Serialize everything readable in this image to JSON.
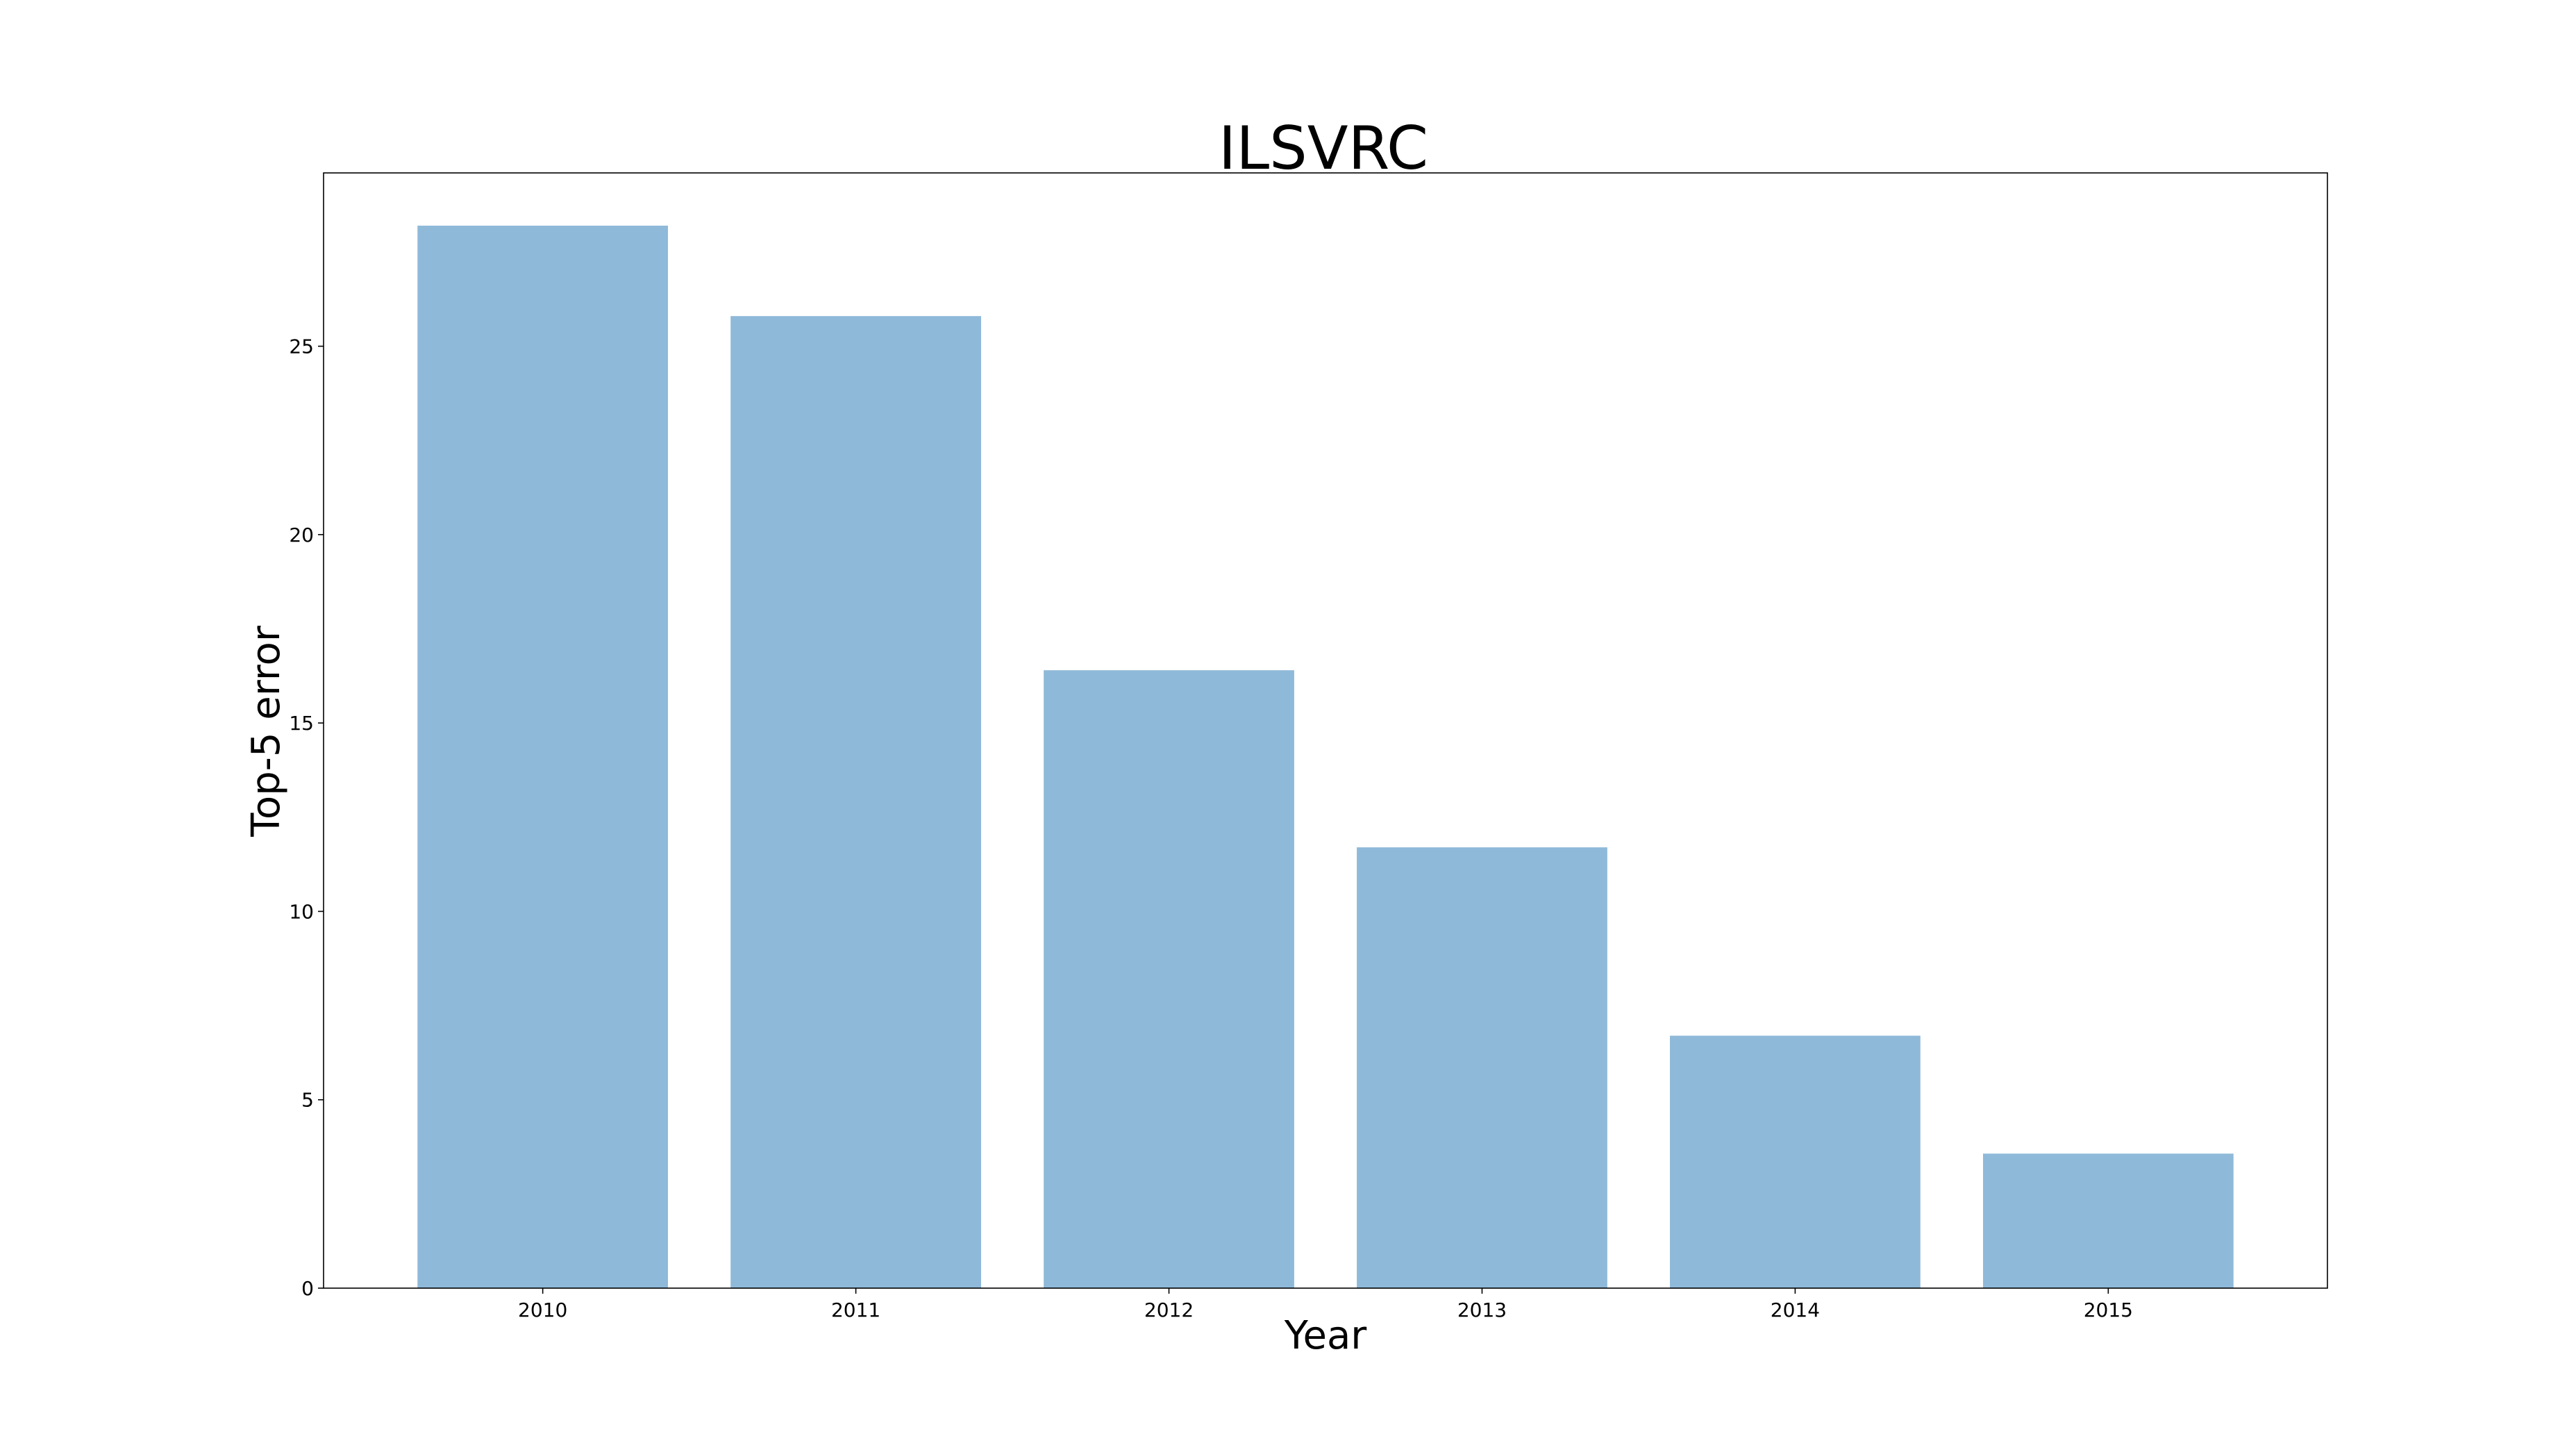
{
  "chart_data": {
    "type": "bar",
    "title": "ILSVRC",
    "xlabel": "Year",
    "ylabel": "Top-5 error",
    "categories": [
      "2010",
      "2011",
      "2012",
      "2013",
      "2014",
      "2015"
    ],
    "values": [
      28.2,
      25.8,
      16.4,
      11.7,
      6.7,
      3.57
    ],
    "ylim": [
      0,
      29.6
    ],
    "yticks": [
      0,
      5,
      10,
      15,
      20,
      25
    ],
    "bar_color": "#8fb9d9",
    "grid": false,
    "legend": "none"
  }
}
